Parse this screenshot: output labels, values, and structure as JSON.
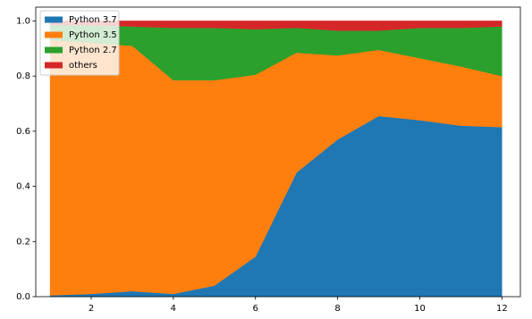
{
  "chart_data": {
    "type": "stackplot",
    "x": [
      1,
      2,
      3,
      4,
      5,
      6,
      7,
      8,
      9,
      10,
      11,
      12
    ],
    "series": [
      {
        "name": "Python 3.7",
        "color": "#1f77b4",
        "values": [
          0.005,
          0.01,
          0.02,
          0.01,
          0.04,
          0.145,
          0.45,
          0.57,
          0.655,
          0.64,
          0.62,
          0.615
        ]
      },
      {
        "name": "Python 3.5",
        "color": "#ff7f0e",
        "values": [
          0.925,
          0.91,
          0.89,
          0.775,
          0.745,
          0.66,
          0.435,
          0.305,
          0.24,
          0.225,
          0.215,
          0.185
        ]
      },
      {
        "name": "Python 2.7",
        "color": "#2ca02c",
        "values": [
          0.055,
          0.065,
          0.07,
          0.19,
          0.19,
          0.165,
          0.09,
          0.09,
          0.07,
          0.11,
          0.14,
          0.18
        ]
      },
      {
        "name": "others",
        "color": "#d62728",
        "values": [
          0.015,
          0.015,
          0.02,
          0.025,
          0.025,
          0.03,
          0.025,
          0.035,
          0.035,
          0.025,
          0.025,
          0.02
        ]
      }
    ],
    "xlim": [
      0.65,
      12.45
    ],
    "xticks": [
      2,
      4,
      6,
      8,
      10,
      12
    ],
    "ylim": [
      0,
      1.05
    ],
    "yticks": [
      {
        "value": 0,
        "label": "0.0"
      },
      0.2,
      0.4,
      0.6,
      0.8,
      {
        "value": 1,
        "label": "1.0"
      }
    ],
    "legend": "upper left"
  }
}
